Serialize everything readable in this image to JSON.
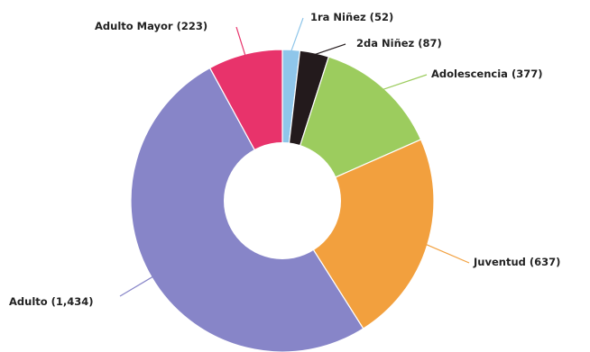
{
  "chart_data": {
    "type": "pie",
    "variant": "donut",
    "title": "",
    "legend": "none",
    "slices": [
      {
        "label": "1ra Niñez (52)",
        "name": "1ra Niñez",
        "value": 52,
        "color": "#8fc6ea"
      },
      {
        "label": "2da Niñez (87)",
        "name": "2da Niñez",
        "value": 87,
        "color": "#231a1c"
      },
      {
        "label": "Adolescencia (377)",
        "name": "Adolescencia",
        "value": 377,
        "color": "#9ccc5e"
      },
      {
        "label": "Juventud (637)",
        "name": "Juventud",
        "value": 637,
        "color": "#f2a03e"
      },
      {
        "label": "Adulto (1,434)",
        "name": "Adulto",
        "value": 1434,
        "color": "#8785c8"
      },
      {
        "label": "Adulto Mayor (223)",
        "name": "Adulto Mayor",
        "value": 223,
        "color": "#e8336b"
      }
    ]
  }
}
